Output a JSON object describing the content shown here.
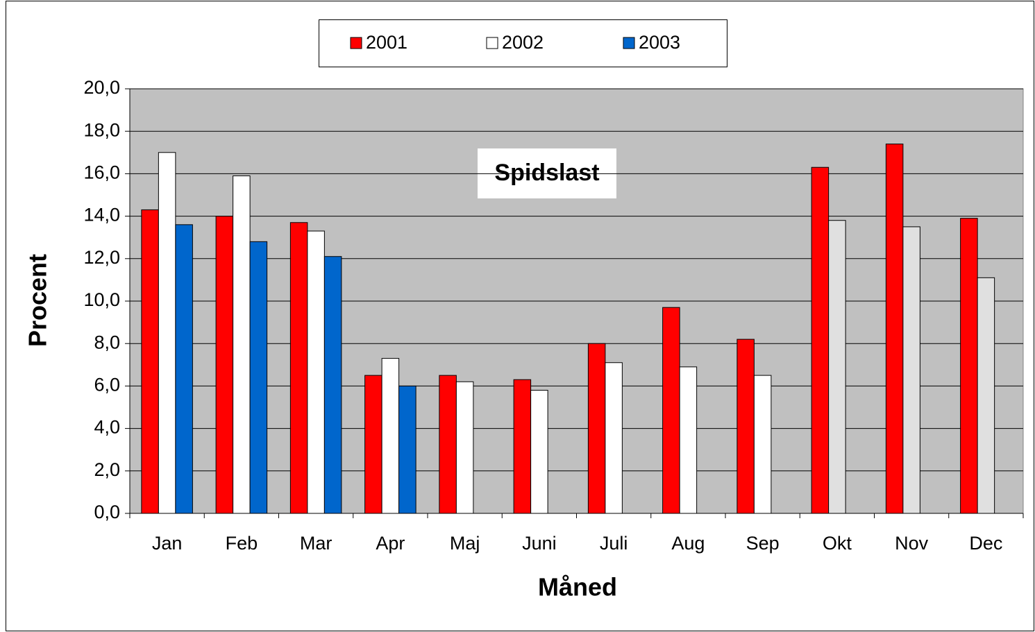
{
  "chart_data": {
    "type": "bar",
    "title": "Spidslast",
    "x_label": "Måned",
    "y_label": "Procent",
    "categories": [
      "Jan",
      "Feb",
      "Mar",
      "Apr",
      "Maj",
      "Juni",
      "Juli",
      "Aug",
      "Sep",
      "Okt",
      "Nov",
      "Dec"
    ],
    "series": [
      {
        "name": "2001",
        "color": "#ff0000",
        "values": [
          14.3,
          14.0,
          13.7,
          6.5,
          6.5,
          6.3,
          8.0,
          9.7,
          8.2,
          16.3,
          17.4,
          13.9
        ]
      },
      {
        "name": "2002",
        "color": "#ffffff",
        "colors": [
          "#ffffff",
          "#ffffff",
          "#ffffff",
          "#ffffff",
          "#ffffff",
          "#ffffff",
          "#ffffff",
          "#ffffff",
          "#ffffff",
          "#e0e0e0",
          "#e0e0e0",
          "#e0e0e0"
        ],
        "values": [
          17.0,
          15.9,
          13.3,
          7.3,
          6.2,
          5.8,
          7.1,
          6.9,
          6.5,
          13.8,
          13.5,
          11.1
        ]
      },
      {
        "name": "2003",
        "color": "#0066cc",
        "values": [
          13.6,
          12.8,
          12.1,
          6.0,
          null,
          null,
          null,
          null,
          null,
          null,
          null,
          null
        ]
      }
    ],
    "ylim": [
      0,
      20
    ],
    "yticks": [
      {
        "value": 0,
        "label": "0,0"
      },
      {
        "value": 2,
        "label": "2,0"
      },
      {
        "value": 4,
        "label": "4,0"
      },
      {
        "value": 6,
        "label": "6,0"
      },
      {
        "value": 8,
        "label": "8,0"
      },
      {
        "value": 10,
        "label": "10,0"
      },
      {
        "value": 12,
        "label": "12,0"
      },
      {
        "value": 14,
        "label": "14,0"
      },
      {
        "value": 16,
        "label": "16,0"
      },
      {
        "value": 18,
        "label": "18,0"
      },
      {
        "value": 20,
        "label": "20,0"
      }
    ],
    "grid": true,
    "legend": "top"
  }
}
